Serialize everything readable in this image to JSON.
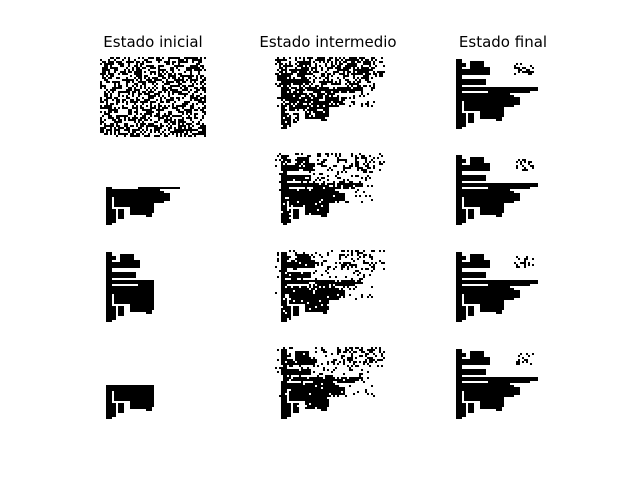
{
  "figure": {
    "columns": [
      {
        "title": "Estado inicial"
      },
      {
        "title": "Estado intermedio"
      },
      {
        "title": "Estado final"
      }
    ],
    "rows": 4,
    "ink_color": "#000000",
    "background_color": "#ffffff"
  }
}
